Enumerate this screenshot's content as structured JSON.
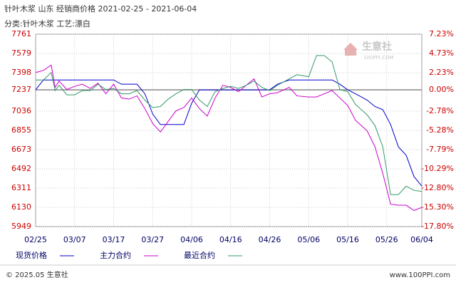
{
  "chart_data": {
    "type": "line",
    "title": "针叶木浆 山东 经销商价格 2021-02-25 - 2021-06-04",
    "subtitle": "分类:针叶木浆 工艺:漂白",
    "x": [
      "02/25",
      "02/27",
      "03/01",
      "03/02",
      "03/03",
      "03/05",
      "03/07",
      "03/09",
      "03/11",
      "03/13",
      "03/15",
      "03/17",
      "03/19",
      "03/21",
      "03/23",
      "03/25",
      "03/27",
      "03/29",
      "03/31",
      "04/02",
      "04/04",
      "04/06",
      "04/08",
      "04/10",
      "04/12",
      "04/14",
      "04/16",
      "04/18",
      "04/20",
      "04/22",
      "04/24",
      "04/26",
      "04/28",
      "05/01",
      "05/03",
      "05/06",
      "05/08",
      "05/10",
      "05/12",
      "05/14",
      "05/16",
      "05/18",
      "05/21",
      "05/23",
      "05/25",
      "05/27",
      "05/29",
      "05/31",
      "06/02",
      "06/04"
    ],
    "series": [
      {
        "name": "现货价格",
        "color": "#0000cc",
        "values": [
          7237,
          7330,
          7330,
          7330,
          7330,
          7330,
          7330,
          7330,
          7330,
          7330,
          7330,
          7330,
          7290,
          7290,
          7290,
          7200,
          7010,
          6910,
          6910,
          6910,
          6910,
          7110,
          7237,
          7237,
          7237,
          7237,
          7237,
          7237,
          7237,
          7237,
          7237,
          7237,
          7290,
          7330,
          7330,
          7330,
          7330,
          7330,
          7330,
          7290,
          7237,
          7200,
          7140,
          7080,
          7050,
          6910,
          6700,
          6620,
          6420,
          6330
        ]
      },
      {
        "name": "主力合约",
        "color": "#cc00cc",
        "values": [
          7400,
          7420,
          7470,
          7260,
          7320,
          7240,
          7270,
          7290,
          7250,
          7300,
          7200,
          7290,
          7160,
          7150,
          7180,
          7060,
          6920,
          6840,
          6940,
          7040,
          7070,
          7160,
          7060,
          6990,
          7160,
          7280,
          7260,
          7220,
          7280,
          7340,
          7170,
          7200,
          7210,
          7260,
          7180,
          7170,
          7170,
          7200,
          7230,
          7160,
          7090,
          6950,
          6850,
          6700,
          6450,
          6160,
          6150,
          6150,
          6100,
          6130
        ]
      },
      {
        "name": "最近合约",
        "color": "#339966",
        "values": [
          7330,
          7330,
          7400,
          7230,
          7280,
          7190,
          7190,
          7230,
          7230,
          7290,
          7240,
          7250,
          7200,
          7200,
          7230,
          7140,
          7070,
          7080,
          7150,
          7200,
          7240,
          7240,
          7140,
          7080,
          7220,
          7250,
          7270,
          7250,
          7280,
          7320,
          7260,
          7230,
          7280,
          7340,
          7380,
          7360,
          7560,
          7560,
          7500,
          7240,
          7220,
          7100,
          7000,
          6900,
          6700,
          6250,
          6250,
          6330,
          6290,
          6280
        ]
      }
    ],
    "xlim": [
      "02/25",
      "06/04"
    ],
    "xticks": [
      "02/25",
      "03/07",
      "03/17",
      "03/27",
      "04/06",
      "04/16",
      "04/26",
      "05/06",
      "05/16",
      "05/26",
      "06/04"
    ],
    "ylim": [
      5949,
      7761
    ],
    "yticks": [
      7761,
      7579,
      7398,
      7237,
      7036,
      6855,
      6673,
      6492,
      6311,
      6130,
      5949
    ],
    "base": 7237,
    "y2lim": [
      -17.8,
      7.23
    ],
    "y2ticks": [
      {
        "value": 7.23,
        "label": "7.23%"
      },
      {
        "value": 4.73,
        "label": "4.73%"
      },
      {
        "value": 2.23,
        "label": "2.23%"
      },
      {
        "value": 0,
        "label": "0.00%"
      },
      {
        "value": -2.78,
        "label": "-2.78%"
      },
      {
        "value": -5.28,
        "label": "-5.28%"
      },
      {
        "value": -7.79,
        "label": "-7.79%"
      },
      {
        "value": -10.29,
        "label": "-10.29%"
      },
      {
        "value": -12.8,
        "label": "-12.80%"
      },
      {
        "value": -15.3,
        "label": "-15.30%"
      },
      {
        "value": -17.8,
        "label": "-17.80%"
      }
    ],
    "grid": true,
    "watermark": "生意社",
    "watermark_sub": "100PPI.COM",
    "footer_left": "© 2025.05 生意社",
    "footer_right": "www.100PPI.com"
  }
}
